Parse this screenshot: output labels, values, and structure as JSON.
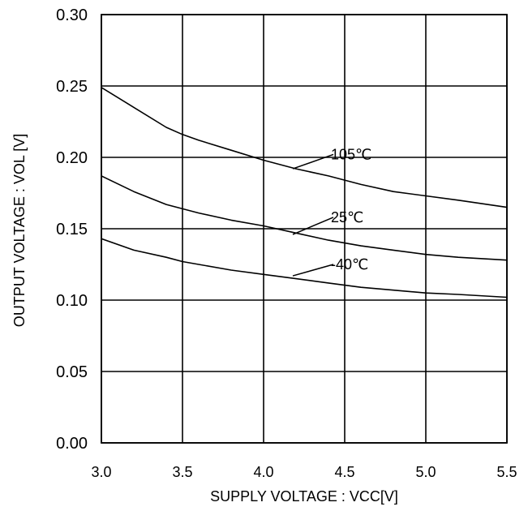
{
  "chart_data": {
    "type": "line",
    "title": "",
    "xlabel": "SUPPLY VOLTAGE : VCC[V]",
    "ylabel": "OUTPUT VOLTAGE : VOL [V]",
    "xlim": [
      3.0,
      5.5
    ],
    "ylim": [
      0.0,
      0.3
    ],
    "xticks": [
      "3.0",
      "3.5",
      "4.0",
      "4.5",
      "5.0",
      "5.5"
    ],
    "yticks": [
      "0.00",
      "0.05",
      "0.10",
      "0.15",
      "0.20",
      "0.25",
      "0.30"
    ],
    "grid": true,
    "series": [
      {
        "name": "105°C",
        "x": [
          3.0,
          3.2,
          3.4,
          3.5,
          3.6,
          3.8,
          4.0,
          4.2,
          4.4,
          4.6,
          4.8,
          5.0,
          5.2,
          5.5
        ],
        "y": [
          0.249,
          0.235,
          0.221,
          0.216,
          0.212,
          0.205,
          0.198,
          0.192,
          0.187,
          0.181,
          0.176,
          0.173,
          0.17,
          0.165
        ]
      },
      {
        "name": "25°C",
        "x": [
          3.0,
          3.2,
          3.4,
          3.5,
          3.6,
          3.8,
          4.0,
          4.2,
          4.4,
          4.6,
          4.8,
          5.0,
          5.2,
          5.5
        ],
        "y": [
          0.187,
          0.176,
          0.167,
          0.164,
          0.161,
          0.156,
          0.152,
          0.147,
          0.142,
          0.138,
          0.135,
          0.132,
          0.13,
          0.128
        ]
      },
      {
        "name": "-40°C",
        "x": [
          3.0,
          3.2,
          3.4,
          3.5,
          3.6,
          3.8,
          4.0,
          4.2,
          4.4,
          4.6,
          4.8,
          5.0,
          5.2,
          5.5
        ],
        "y": [
          0.143,
          0.135,
          0.13,
          0.127,
          0.125,
          0.121,
          0.118,
          0.115,
          0.112,
          0.109,
          0.107,
          0.105,
          0.104,
          0.102
        ]
      }
    ],
    "annotations": [
      {
        "series": "105°C",
        "text": "105℃",
        "point_x": 4.18,
        "point_y": 0.192,
        "label_x": 4.43,
        "label_y": 0.202
      },
      {
        "series": "25°C",
        "text": "25℃",
        "point_x": 4.18,
        "point_y": 0.146,
        "label_x": 4.43,
        "label_y": 0.158
      },
      {
        "series": "-40°C",
        "text": "-40℃",
        "point_x": 4.18,
        "point_y": 0.117,
        "label_x": 4.43,
        "label_y": 0.125
      }
    ],
    "colors": {
      "lines": "#000000",
      "grid": "#000000",
      "background": "#ffffff"
    }
  }
}
